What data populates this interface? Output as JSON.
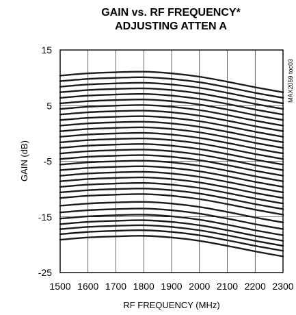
{
  "chart_data": {
    "type": "line",
    "title": "GAIN vs. RF FREQUENCY*",
    "subtitle": "ADJUSTING ATTEN A",
    "xlabel": "RF FREQUENCY (MHz)",
    "ylabel": "GAIN (dB)",
    "xlim": [
      1500,
      2300
    ],
    "ylim": [
      -25,
      15
    ],
    "xticks": [
      1500,
      1600,
      1700,
      1800,
      1900,
      2000,
      2100,
      2200,
      2300
    ],
    "yticks": [
      15,
      5,
      -5,
      -15,
      -25
    ],
    "grid": true,
    "side_label": "MAX2059 toc03",
    "x": [
      1500,
      1600,
      1700,
      1800,
      1900,
      2000,
      2100,
      2200,
      2300
    ],
    "series": [
      {
        "values": [
          10.4,
          10.8,
          11.0,
          11.1,
          10.8,
          10.2,
          9.3,
          8.3,
          7.4
        ]
      },
      {
        "values": [
          9.4,
          9.8,
          10.0,
          10.1,
          9.8,
          9.2,
          8.3,
          7.3,
          6.4
        ]
      },
      {
        "values": [
          8.4,
          8.8,
          9.0,
          9.1,
          8.8,
          8.2,
          7.3,
          6.3,
          5.4
        ]
      },
      {
        "values": [
          7.4,
          7.8,
          8.0,
          8.1,
          7.8,
          7.2,
          6.3,
          5.3,
          4.4
        ]
      },
      {
        "values": [
          6.4,
          6.8,
          7.0,
          7.1,
          6.8,
          6.2,
          5.3,
          4.3,
          3.4
        ]
      },
      {
        "values": [
          5.4,
          5.8,
          6.0,
          6.1,
          5.8,
          5.2,
          4.3,
          3.3,
          2.4
        ]
      },
      {
        "values": [
          4.4,
          4.8,
          5.0,
          5.1,
          4.8,
          4.2,
          3.3,
          2.3,
          1.4
        ]
      },
      {
        "values": [
          3.4,
          3.8,
          4.0,
          4.1,
          3.8,
          3.2,
          2.3,
          1.3,
          0.4
        ]
      },
      {
        "values": [
          2.4,
          2.8,
          3.0,
          3.1,
          2.8,
          2.2,
          1.3,
          0.3,
          -0.6
        ]
      },
      {
        "values": [
          1.4,
          1.8,
          2.0,
          2.1,
          1.8,
          1.2,
          0.3,
          -0.7,
          -1.6
        ]
      },
      {
        "values": [
          0.4,
          0.8,
          1.0,
          1.1,
          0.8,
          0.2,
          -0.7,
          -1.7,
          -2.6
        ]
      },
      {
        "values": [
          -0.6,
          -0.2,
          0.0,
          0.1,
          -0.2,
          -0.8,
          -1.7,
          -2.7,
          -3.6
        ]
      },
      {
        "values": [
          -1.6,
          -1.2,
          -1.0,
          -0.9,
          -1.2,
          -1.8,
          -2.7,
          -3.7,
          -4.6
        ]
      },
      {
        "values": [
          -2.6,
          -2.2,
          -2.0,
          -1.9,
          -2.2,
          -2.8,
          -3.7,
          -4.7,
          -5.6
        ]
      },
      {
        "values": [
          -3.6,
          -3.2,
          -3.0,
          -2.9,
          -3.2,
          -3.8,
          -4.7,
          -5.7,
          -6.6
        ]
      },
      {
        "values": [
          -4.6,
          -4.2,
          -4.0,
          -3.9,
          -4.2,
          -4.8,
          -5.7,
          -6.7,
          -7.6
        ]
      },
      {
        "values": [
          -5.6,
          -5.2,
          -5.0,
          -4.9,
          -5.2,
          -5.8,
          -6.7,
          -7.7,
          -8.6
        ]
      },
      {
        "values": [
          -6.6,
          -6.2,
          -6.0,
          -5.9,
          -6.2,
          -6.8,
          -7.7,
          -8.7,
          -9.6
        ]
      },
      {
        "values": [
          -7.6,
          -7.2,
          -7.0,
          -6.9,
          -7.2,
          -7.8,
          -8.7,
          -9.7,
          -10.6
        ]
      },
      {
        "values": [
          -8.6,
          -8.2,
          -8.0,
          -7.9,
          -8.2,
          -8.8,
          -9.7,
          -10.7,
          -11.6
        ]
      },
      {
        "values": [
          -9.6,
          -9.2,
          -9.0,
          -8.9,
          -9.2,
          -9.8,
          -10.7,
          -11.7,
          -12.6
        ]
      },
      {
        "values": [
          -10.6,
          -10.2,
          -10.0,
          -9.9,
          -10.2,
          -10.8,
          -11.7,
          -12.7,
          -13.6
        ]
      },
      {
        "values": [
          -11.6,
          -11.2,
          -11.0,
          -10.9,
          -11.2,
          -11.8,
          -12.7,
          -13.7,
          -14.6
        ]
      },
      {
        "values": [
          -13.0,
          -12.6,
          -12.4,
          -12.3,
          -12.6,
          -13.2,
          -14.1,
          -15.1,
          -16.0
        ]
      },
      {
        "values": [
          -14.2,
          -13.8,
          -13.6,
          -13.5,
          -13.8,
          -14.4,
          -15.3,
          -16.3,
          -17.2
        ]
      },
      {
        "values": [
          -15.3,
          -14.9,
          -14.7,
          -14.6,
          -14.9,
          -15.5,
          -16.4,
          -17.4,
          -18.3
        ]
      },
      {
        "values": [
          -16.3,
          -15.9,
          -15.7,
          -15.6,
          -15.9,
          -16.5,
          -17.4,
          -18.4,
          -19.3
        ]
      },
      {
        "values": [
          -17.2,
          -16.8,
          -16.6,
          -16.5,
          -16.8,
          -17.4,
          -18.3,
          -19.3,
          -20.2
        ]
      },
      {
        "values": [
          -18.1,
          -17.7,
          -17.5,
          -17.4,
          -17.7,
          -18.3,
          -19.2,
          -20.2,
          -21.1
        ]
      },
      {
        "values": [
          -19.1,
          -18.7,
          -18.5,
          -18.4,
          -18.7,
          -19.3,
          -20.2,
          -21.2,
          -22.1
        ]
      }
    ]
  }
}
